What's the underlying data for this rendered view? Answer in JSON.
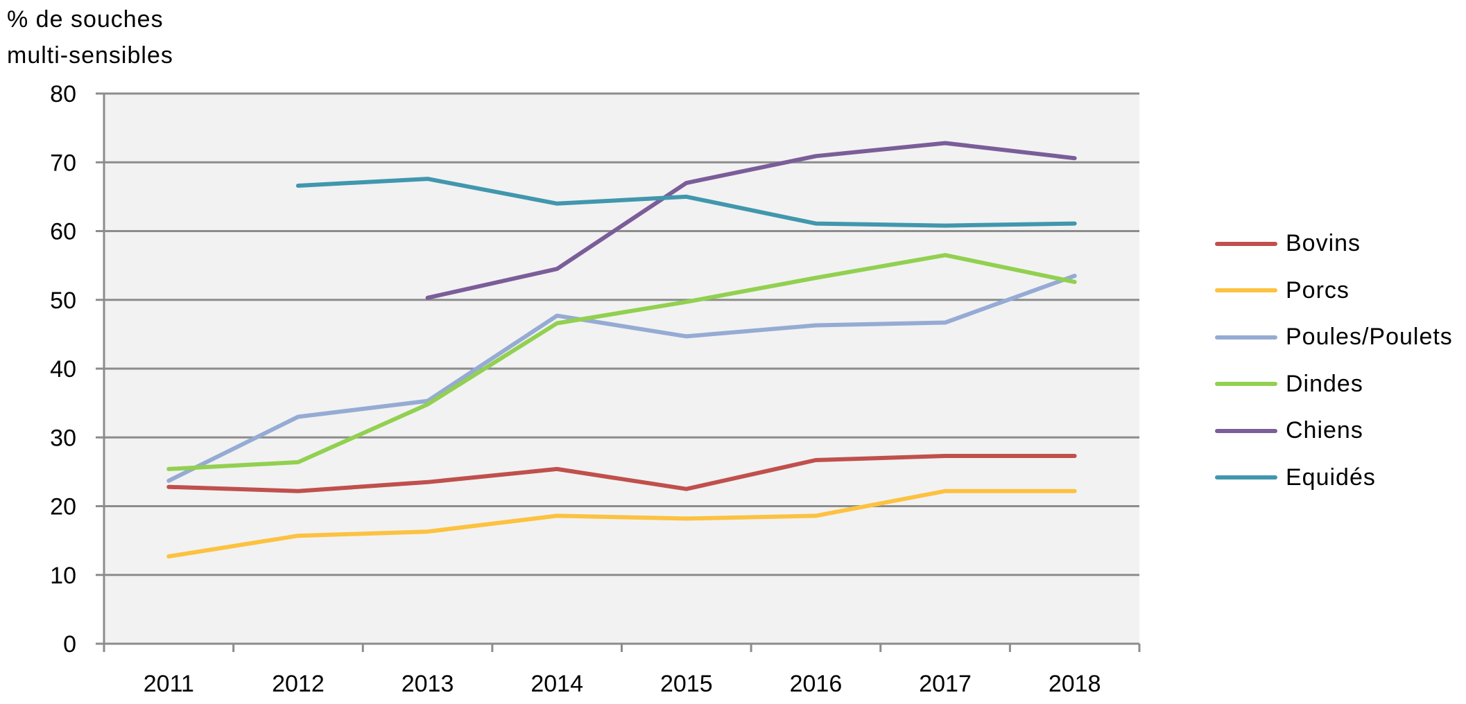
{
  "chart_data": {
    "type": "line",
    "title": "",
    "ylabel": "% de souches\nmulti-sensibles",
    "xlabel": "",
    "x": [
      "2011",
      "2012",
      "2013",
      "2014",
      "2015",
      "2016",
      "2017",
      "2018"
    ],
    "ylim": [
      0,
      80
    ],
    "yticks": [
      0,
      10,
      20,
      30,
      40,
      50,
      60,
      70,
      80
    ],
    "grid": true,
    "legend_position": "right",
    "background": "#f2f2f2",
    "series": [
      {
        "name": "Bovins",
        "color": "#c0504d",
        "values": [
          22.8,
          22.2,
          23.5,
          25.4,
          22.5,
          26.7,
          27.3,
          27.3
        ]
      },
      {
        "name": "Porcs",
        "color": "#fcc240",
        "values": [
          12.7,
          15.7,
          16.3,
          18.6,
          18.2,
          18.6,
          22.2,
          22.2
        ]
      },
      {
        "name": "Poules/Poulets",
        "color": "#95abd4",
        "values": [
          23.7,
          33.0,
          35.3,
          47.7,
          44.7,
          46.3,
          46.7,
          53.5
        ]
      },
      {
        "name": "Dindes",
        "color": "#92d050",
        "values": [
          25.4,
          26.4,
          34.8,
          46.6,
          49.7,
          53.2,
          56.5,
          52.6
        ]
      },
      {
        "name": "Chiens",
        "color": "#7b5d99",
        "values": [
          null,
          null,
          50.3,
          54.5,
          67.0,
          70.9,
          72.8,
          70.6
        ]
      },
      {
        "name": "Equidés",
        "color": "#4197ad",
        "values": [
          null,
          66.6,
          67.6,
          64.0,
          65.0,
          61.1,
          60.8,
          61.1
        ]
      }
    ]
  }
}
